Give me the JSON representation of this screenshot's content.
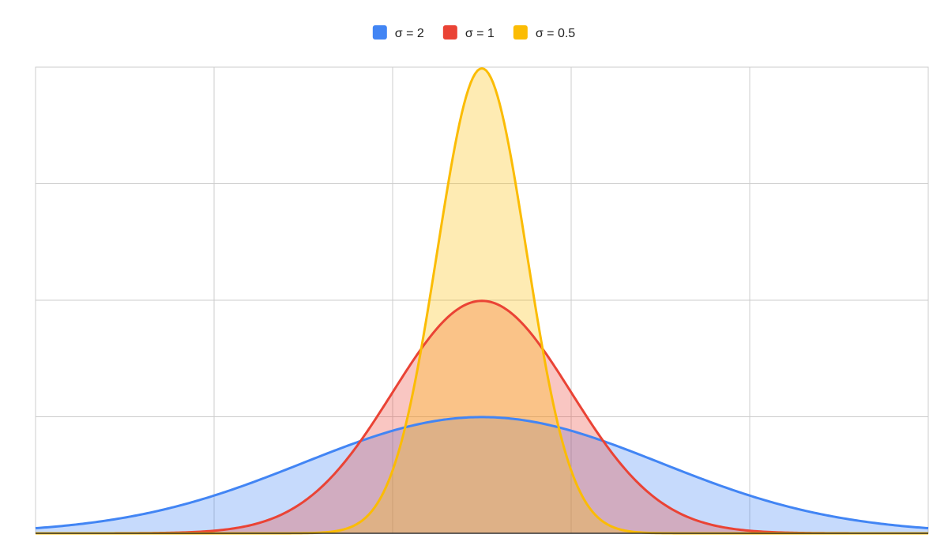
{
  "chart_data": {
    "type": "area",
    "title": "",
    "xlabel": "",
    "ylabel": "",
    "xlim": [
      -5,
      5
    ],
    "ylim": [
      0,
      0.8
    ],
    "x_gridlines": [
      -3,
      -1,
      1,
      3
    ],
    "y_gridlines": [
      0.2,
      0.4,
      0.6
    ],
    "grid": true,
    "legend_position": "top",
    "series": [
      {
        "name": "σ = 2",
        "mean": 0,
        "sigma": 2,
        "color": "#4285f4"
      },
      {
        "name": "σ = 1",
        "mean": 0,
        "sigma": 1,
        "color": "#ea4335"
      },
      {
        "name": "σ = 0.5",
        "mean": 0,
        "sigma": 0.5,
        "color": "#fbbc04"
      }
    ]
  }
}
